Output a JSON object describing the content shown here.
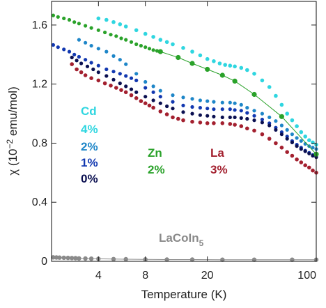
{
  "chart_data": {
    "type": "scatter",
    "title": "",
    "xlabel": "Temperature (K)",
    "ylabel_prefix": "χ (10",
    "ylabel_exp": "−2",
    "ylabel_suffix": " emu/mol)",
    "xscale": "log",
    "xlim": [
      2,
      100
    ],
    "ylim": [
      0,
      1.76
    ],
    "x_ticks": [
      4,
      8,
      20,
      100
    ],
    "x_tick_labels": [
      "4",
      "8",
      "20",
      "100"
    ],
    "y_ticks": [
      0,
      0.4,
      0.8,
      1.2,
      1.6
    ],
    "y_tick_labels": [
      "0",
      "0.4",
      "0.8",
      "1.2",
      "1.6"
    ],
    "grid": false,
    "legend": "none",
    "series": [
      {
        "key": "cd4",
        "color": "#2fd6e0",
        "marker_size": 2.8,
        "line": false,
        "x": [
          4.0,
          4.5,
          5,
          5.5,
          6,
          7,
          8,
          9,
          10,
          11,
          12,
          14,
          16,
          18,
          20,
          22,
          24,
          26,
          28,
          30,
          33,
          36,
          40,
          45,
          50,
          55,
          60,
          65,
          70,
          75,
          80,
          85,
          90,
          95,
          100
        ],
        "values": [
          1.645,
          1.635,
          1.62,
          1.605,
          1.59,
          1.565,
          1.54,
          1.52,
          1.5,
          1.485,
          1.47,
          1.445,
          1.42,
          1.395,
          1.37,
          1.355,
          1.34,
          1.33,
          1.325,
          1.32,
          1.31,
          1.295,
          1.27,
          1.225,
          1.18,
          1.12,
          1.06,
          1.0,
          0.955,
          0.915,
          0.875,
          0.845,
          0.82,
          0.805,
          0.79
        ]
      },
      {
        "key": "cd2",
        "color": "#1e86c8",
        "marker_size": 2.6,
        "line": false,
        "x": [
          3.0,
          3.3,
          3.6,
          4,
          4.5,
          5,
          5.5,
          6,
          7,
          8,
          9,
          10,
          12,
          14,
          16,
          18,
          20,
          22,
          25,
          28,
          30,
          33,
          36,
          40,
          45,
          50,
          55,
          60,
          65,
          70,
          75,
          80,
          85,
          90,
          95,
          100
        ],
        "values": [
          1.5,
          1.48,
          1.46,
          1.44,
          1.42,
          1.39,
          1.365,
          1.335,
          1.27,
          1.215,
          1.185,
          1.155,
          1.125,
          1.11,
          1.1,
          1.09,
          1.085,
          1.08,
          1.075,
          1.075,
          1.07,
          1.06,
          1.04,
          1.02,
          1.0,
          0.975,
          0.95,
          0.92,
          0.89,
          0.86,
          0.835,
          0.815,
          0.795,
          0.78,
          0.77,
          0.76
        ]
      },
      {
        "key": "cd1",
        "color": "#1238b0",
        "marker_size": 2.6,
        "line": false,
        "x": [
          2.05,
          2.2,
          2.4,
          2.6,
          2.8,
          3.0,
          3.3,
          3.6,
          4,
          4.5,
          5,
          5.5,
          6,
          6.5,
          7,
          8,
          9,
          10,
          12,
          14,
          16,
          18,
          20,
          22,
          25,
          28,
          30,
          33,
          36,
          40,
          45,
          50,
          55,
          60,
          65,
          70,
          75,
          80,
          85,
          90,
          95,
          100
        ],
        "values": [
          1.465,
          1.45,
          1.435,
          1.42,
          1.4,
          1.385,
          1.365,
          1.345,
          1.325,
          1.3,
          1.285,
          1.27,
          1.255,
          1.24,
          1.225,
          1.175,
          1.145,
          1.115,
          1.08,
          1.055,
          1.045,
          1.04,
          1.035,
          1.03,
          1.03,
          1.03,
          1.025,
          1.02,
          1.005,
          0.985,
          0.96,
          0.935,
          0.905,
          0.875,
          0.845,
          0.815,
          0.79,
          0.77,
          0.75,
          0.735,
          0.72,
          0.71
        ]
      },
      {
        "key": "cd0",
        "color": "#0a0f50",
        "marker_size": 2.6,
        "line": false,
        "x": [
          2.7,
          2.9,
          3.1,
          3.4,
          3.7,
          4,
          4.5,
          5,
          5.5,
          6,
          6.5,
          7,
          8,
          9,
          10,
          11,
          12,
          14,
          16,
          18,
          20,
          22,
          25,
          28,
          30,
          33,
          36,
          40,
          45,
          50,
          55,
          60,
          65,
          70,
          75,
          80,
          85,
          90,
          95,
          100
        ],
        "values": [
          1.38,
          1.36,
          1.34,
          1.32,
          1.3,
          1.28,
          1.255,
          1.23,
          1.205,
          1.185,
          1.165,
          1.145,
          1.115,
          1.09,
          1.07,
          1.05,
          1.035,
          1.01,
          1.0,
          0.99,
          0.985,
          0.98,
          0.975,
          0.975,
          0.975,
          0.97,
          0.965,
          0.955,
          0.94,
          0.92,
          0.89,
          0.86,
          0.83,
          0.805,
          0.78,
          0.76,
          0.745,
          0.73,
          0.715,
          0.705
        ]
      },
      {
        "key": "la3",
        "color": "#a3202f",
        "marker_size": 2.8,
        "line": false,
        "x": [
          2.7,
          2.9,
          3.1,
          3.3,
          3.6,
          4,
          4.4,
          4.8,
          5.2,
          5.6,
          6,
          6.5,
          7,
          7.5,
          8,
          8.5,
          9,
          10,
          11,
          12,
          13,
          14,
          16,
          18,
          20,
          22,
          25,
          28,
          30,
          33,
          36,
          40,
          45,
          50,
          55,
          60,
          65,
          70,
          75,
          80,
          85,
          90,
          95,
          100
        ],
        "values": [
          1.335,
          1.3,
          1.28,
          1.26,
          1.24,
          1.225,
          1.205,
          1.19,
          1.175,
          1.16,
          1.145,
          1.125,
          1.105,
          1.085,
          1.07,
          1.055,
          1.04,
          1.015,
          0.995,
          0.975,
          0.965,
          0.955,
          0.945,
          0.94,
          0.935,
          0.935,
          0.935,
          0.93,
          0.925,
          0.915,
          0.9,
          0.885,
          0.86,
          0.83,
          0.8,
          0.77,
          0.74,
          0.715,
          0.69,
          0.67,
          0.65,
          0.635,
          0.615,
          0.6
        ]
      },
      {
        "key": "zn2",
        "color": "#2aa22a",
        "marker_size": 2.6,
        "line": false,
        "x": [
          2.05,
          2.2,
          2.4,
          2.6,
          2.8,
          3.0,
          3.3,
          3.6,
          4,
          4.4,
          4.8,
          5.2,
          5.6,
          6,
          6.5,
          7,
          7.5,
          8,
          8.5,
          9,
          9.5,
          10
        ],
        "values": [
          1.665,
          1.655,
          1.645,
          1.635,
          1.62,
          1.61,
          1.595,
          1.58,
          1.565,
          1.55,
          1.535,
          1.525,
          1.51,
          1.5,
          1.485,
          1.47,
          1.46,
          1.45,
          1.44,
          1.43,
          1.425,
          1.42
        ]
      },
      {
        "key": "zn2-high",
        "color": "#2aa22a",
        "marker_size": 3.6,
        "line": true,
        "x": [
          10,
          13,
          16,
          20,
          25,
          30,
          40,
          60,
          100
        ],
        "values": [
          1.42,
          1.38,
          1.34,
          1.3,
          1.26,
          1.22,
          1.13,
          0.98,
          0.725
        ]
      },
      {
        "key": "lacoin5",
        "color": "#8a8a8a",
        "marker_size": 3.2,
        "line": true,
        "x": [
          2.05,
          2.15,
          2.25,
          2.4,
          2.55,
          2.7,
          2.85,
          3.0,
          3.3,
          3.6,
          4,
          5,
          6,
          8,
          11,
          16,
          25,
          40,
          70,
          100
        ],
        "values": [
          0.027,
          0.026,
          0.025,
          0.024,
          0.023,
          0.022,
          0.021,
          0.02,
          0.019,
          0.018,
          0.017,
          0.015,
          0.014,
          0.013,
          0.012,
          0.012,
          0.011,
          0.011,
          0.011,
          0.011
        ]
      }
    ],
    "annotations": [
      {
        "text": "Cd",
        "color": "#2fd6e0"
      },
      {
        "text": "4%",
        "color": "#2fd6e0"
      },
      {
        "text": "2%",
        "color": "#1e86c8"
      },
      {
        "text": "1%",
        "color": "#1238b0"
      },
      {
        "text": "0%",
        "color": "#0a0f50"
      },
      {
        "text": "Zn",
        "color": "#2aa22a"
      },
      {
        "text": "2%",
        "color": "#2aa22a"
      },
      {
        "text": "La",
        "color": "#a3202f"
      },
      {
        "text": "3%",
        "color": "#a3202f"
      },
      {
        "text": "LaCoIn",
        "sub": "5",
        "color": "#8a8a8a"
      }
    ]
  }
}
